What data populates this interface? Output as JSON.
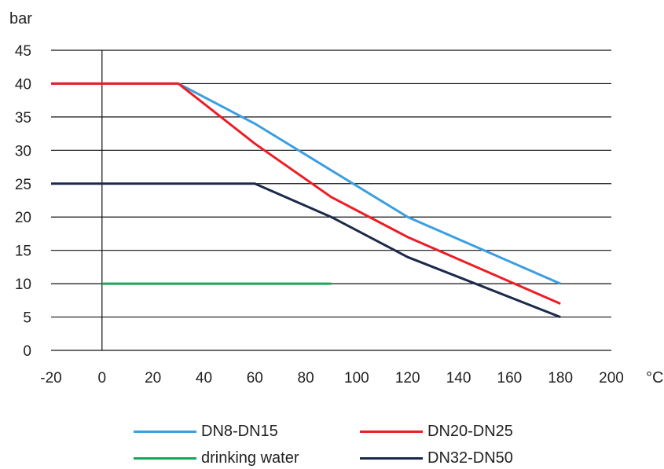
{
  "chart_data": {
    "type": "line",
    "title": "",
    "ylabel": "bar",
    "xlabel": "°C",
    "xlim": [
      -20,
      200
    ],
    "ylim": [
      0,
      45
    ],
    "x_ticks": [
      -20,
      0,
      20,
      40,
      60,
      80,
      100,
      120,
      140,
      160,
      180,
      200
    ],
    "y_ticks": [
      0,
      5,
      10,
      15,
      20,
      25,
      30,
      35,
      40,
      45
    ],
    "grid": "horizontal",
    "legend_position": "bottom",
    "series": [
      {
        "name": "DN8-DN15",
        "color": "#3a9ee0",
        "points": [
          [
            -20,
            40
          ],
          [
            30,
            40
          ],
          [
            60,
            34
          ],
          [
            120,
            20
          ],
          [
            180,
            10
          ]
        ]
      },
      {
        "name": "DN20-DN25",
        "color": "#ee1c25",
        "points": [
          [
            -20,
            40
          ],
          [
            30,
            40
          ],
          [
            60,
            31
          ],
          [
            90,
            23
          ],
          [
            120,
            17
          ],
          [
            180,
            7
          ]
        ]
      },
      {
        "name": "drinking water",
        "color": "#1aa65a",
        "points": [
          [
            0,
            10
          ],
          [
            90,
            10
          ]
        ]
      },
      {
        "name": "DN32-DN50",
        "color": "#1b2a4a",
        "points": [
          [
            -20,
            25
          ],
          [
            60,
            25
          ],
          [
            90,
            20
          ],
          [
            120,
            14
          ],
          [
            180,
            5
          ]
        ]
      }
    ]
  }
}
